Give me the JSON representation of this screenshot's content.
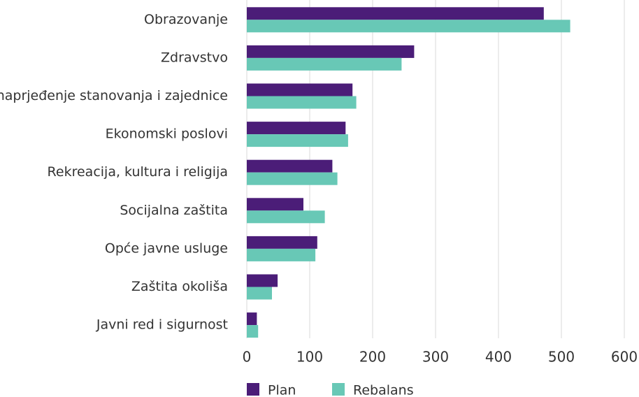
{
  "chart_data": {
    "type": "barh",
    "categories": [
      "Obrazovanje",
      "Zdravstvo",
      "Unaprjeđenje stanovanja i zajednice",
      "Ekonomski poslovi",
      "Rekreacija, kultura i religija",
      "Socijalna zaštita",
      "Opće javne usluge",
      "Zaštita okoliša",
      "Javni red i sigurnost"
    ],
    "series": [
      {
        "name": "Plan",
        "color": "#4b1d78",
        "values": [
          472,
          266,
          168,
          157,
          136,
          90,
          112,
          49,
          16
        ]
      },
      {
        "name": "Rebalans",
        "color": "#68c8b6",
        "values": [
          514,
          246,
          174,
          161,
          144,
          124,
          109,
          40,
          18
        ]
      }
    ],
    "xlim": [
      0,
      600
    ],
    "xticks": [
      0,
      100,
      200,
      300,
      400,
      500,
      600
    ],
    "grid": true,
    "legend": "bottom"
  }
}
